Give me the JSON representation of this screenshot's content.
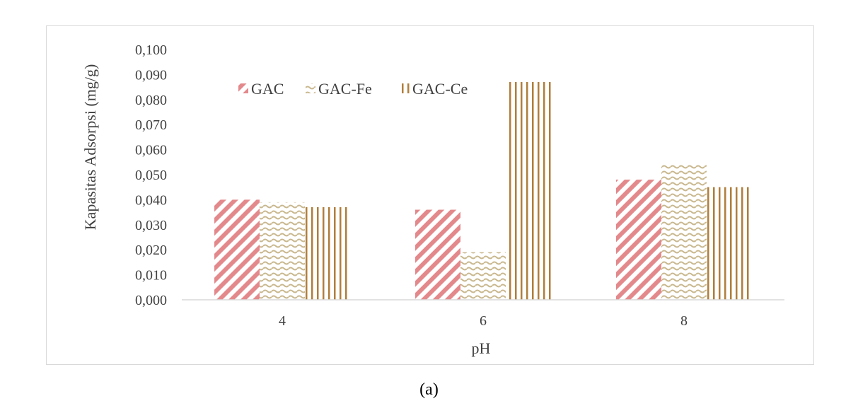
{
  "chart_data": {
    "type": "bar",
    "categories": [
      "4",
      "6",
      "8"
    ],
    "series": [
      {
        "name": "GAC",
        "values": [
          0.04,
          0.036,
          0.048
        ],
        "color": "#e3898c",
        "pattern": "diagonal-stripes"
      },
      {
        "name": "GAC-Fe",
        "values": [
          0.039,
          0.019,
          0.054
        ],
        "color": "#c9b88e",
        "pattern": "wave"
      },
      {
        "name": "GAC-Ce",
        "values": [
          0.037,
          0.087,
          0.045
        ],
        "color": "#b07e3b",
        "pattern": "vertical-stripes"
      }
    ],
    "title": "",
    "xlabel": "pH",
    "ylabel": "Kapasitas Adsorpsi (mg/g)",
    "ylim": [
      0,
      0.1
    ],
    "yticks": [
      "0,000",
      "0,010",
      "0,020",
      "0,030",
      "0,040",
      "0,050",
      "0,060",
      "0,070",
      "0,080",
      "0,090",
      "0,100"
    ],
    "grid": false,
    "legend_position": "top-left"
  },
  "caption": "(a)"
}
